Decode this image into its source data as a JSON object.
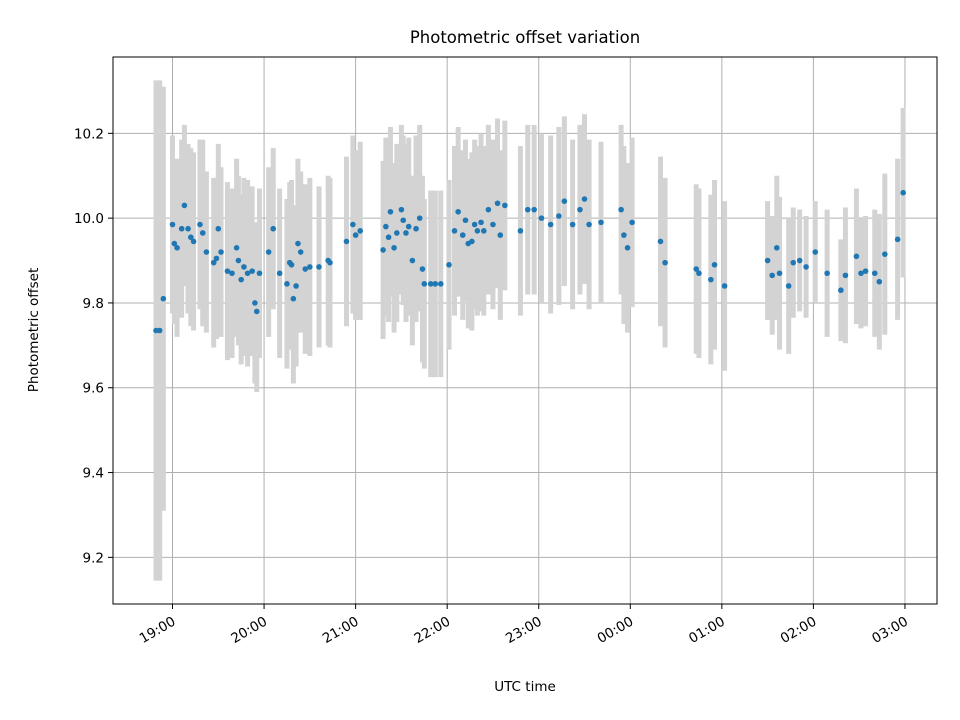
{
  "chart_data": {
    "type": "scatter",
    "title": "Photometric offset variation",
    "xlabel": "UTC time",
    "ylabel": "Photometric offset",
    "x_unit": "hours",
    "xlim": [
      18.35,
      27.35
    ],
    "ylim": [
      9.09,
      10.38
    ],
    "grid": true,
    "colors": {
      "points": "#1f77b4",
      "errorbars": "#d3d3d3",
      "grid": "#b0b0b0"
    },
    "xticks": [
      {
        "value": 19,
        "label": "19:00"
      },
      {
        "value": 20,
        "label": "20:00"
      },
      {
        "value": 21,
        "label": "21:00"
      },
      {
        "value": 22,
        "label": "22:00"
      },
      {
        "value": 23,
        "label": "23:00"
      },
      {
        "value": 24,
        "label": "00:00"
      },
      {
        "value": 25,
        "label": "01:00"
      },
      {
        "value": 26,
        "label": "02:00"
      },
      {
        "value": 27,
        "label": "03:00"
      }
    ],
    "yticks": [
      {
        "value": 9.2,
        "label": "9.2"
      },
      {
        "value": 9.4,
        "label": "9.4"
      },
      {
        "value": 9.6,
        "label": "9.6"
      },
      {
        "value": 9.8,
        "label": "9.8"
      },
      {
        "value": 10.0,
        "label": "10.0"
      },
      {
        "value": 10.2,
        "label": "10.2"
      }
    ],
    "series": [
      {
        "points": [
          {
            "x": 18.82,
            "y": 9.735,
            "err": 0.59
          },
          {
            "x": 18.86,
            "y": 9.735,
            "err": 0.59
          },
          {
            "x": 18.9,
            "y": 9.81,
            "err": 0.5
          },
          {
            "x": 19.0,
            "y": 9.985,
            "err": 0.21
          },
          {
            "x": 19.02,
            "y": 9.94,
            "err": 0.19
          },
          {
            "x": 19.05,
            "y": 9.93,
            "err": 0.21
          },
          {
            "x": 19.1,
            "y": 9.975,
            "err": 0.21
          },
          {
            "x": 19.13,
            "y": 10.03,
            "err": 0.19
          },
          {
            "x": 19.17,
            "y": 9.975,
            "err": 0.2
          },
          {
            "x": 19.2,
            "y": 9.955,
            "err": 0.21
          },
          {
            "x": 19.23,
            "y": 9.945,
            "err": 0.21
          },
          {
            "x": 19.3,
            "y": 9.985,
            "err": 0.2
          },
          {
            "x": 19.33,
            "y": 9.965,
            "err": 0.22
          },
          {
            "x": 19.37,
            "y": 9.92,
            "err": 0.19
          },
          {
            "x": 19.45,
            "y": 9.895,
            "err": 0.2
          },
          {
            "x": 19.48,
            "y": 9.905,
            "err": 0.19
          },
          {
            "x": 19.5,
            "y": 9.975,
            "err": 0.2
          },
          {
            "x": 19.53,
            "y": 9.92,
            "err": 0.2
          },
          {
            "x": 19.6,
            "y": 9.875,
            "err": 0.21
          },
          {
            "x": 19.65,
            "y": 9.87,
            "err": 0.2
          },
          {
            "x": 19.7,
            "y": 9.93,
            "err": 0.21
          },
          {
            "x": 19.72,
            "y": 9.9,
            "err": 0.2
          },
          {
            "x": 19.75,
            "y": 9.855,
            "err": 0.2
          },
          {
            "x": 19.78,
            "y": 9.885,
            "err": 0.21
          },
          {
            "x": 19.82,
            "y": 9.87,
            "err": 0.22
          },
          {
            "x": 19.87,
            "y": 9.875,
            "err": 0.2
          },
          {
            "x": 19.9,
            "y": 9.8,
            "err": 0.19
          },
          {
            "x": 19.92,
            "y": 9.78,
            "err": 0.19
          },
          {
            "x": 19.95,
            "y": 9.87,
            "err": 0.2
          },
          {
            "x": 20.05,
            "y": 9.92,
            "err": 0.2
          },
          {
            "x": 20.1,
            "y": 9.975,
            "err": 0.19
          },
          {
            "x": 20.17,
            "y": 9.87,
            "err": 0.2
          },
          {
            "x": 20.25,
            "y": 9.845,
            "err": 0.2
          },
          {
            "x": 20.28,
            "y": 9.895,
            "err": 0.19
          },
          {
            "x": 20.3,
            "y": 9.89,
            "err": 0.2
          },
          {
            "x": 20.32,
            "y": 9.81,
            "err": 0.2
          },
          {
            "x": 20.35,
            "y": 9.84,
            "err": 0.19
          },
          {
            "x": 20.37,
            "y": 9.94,
            "err": 0.2
          },
          {
            "x": 20.4,
            "y": 9.92,
            "err": 0.19
          },
          {
            "x": 20.45,
            "y": 9.88,
            "err": 0.2
          },
          {
            "x": 20.5,
            "y": 9.885,
            "err": 0.21
          },
          {
            "x": 20.6,
            "y": 9.885,
            "err": 0.19
          },
          {
            "x": 20.7,
            "y": 9.9,
            "err": 0.2
          },
          {
            "x": 20.72,
            "y": 9.895,
            "err": 0.2
          },
          {
            "x": 20.9,
            "y": 9.945,
            "err": 0.2
          },
          {
            "x": 20.97,
            "y": 9.985,
            "err": 0.21
          },
          {
            "x": 21.0,
            "y": 9.96,
            "err": 0.2
          },
          {
            "x": 21.05,
            "y": 9.97,
            "err": 0.21
          },
          {
            "x": 21.3,
            "y": 9.925,
            "err": 0.21
          },
          {
            "x": 21.33,
            "y": 9.98,
            "err": 0.21
          },
          {
            "x": 21.36,
            "y": 9.955,
            "err": 0.2
          },
          {
            "x": 21.38,
            "y": 10.015,
            "err": 0.2
          },
          {
            "x": 21.42,
            "y": 9.93,
            "err": 0.2
          },
          {
            "x": 21.45,
            "y": 9.965,
            "err": 0.21
          },
          {
            "x": 21.5,
            "y": 10.02,
            "err": 0.2
          },
          {
            "x": 21.52,
            "y": 9.995,
            "err": 0.2
          },
          {
            "x": 21.55,
            "y": 9.965,
            "err": 0.21
          },
          {
            "x": 21.58,
            "y": 9.98,
            "err": 0.21
          },
          {
            "x": 21.62,
            "y": 9.9,
            "err": 0.2
          },
          {
            "x": 21.66,
            "y": 9.975,
            "err": 0.22
          },
          {
            "x": 21.7,
            "y": 10.0,
            "err": 0.22
          },
          {
            "x": 21.73,
            "y": 9.88,
            "err": 0.22
          },
          {
            "x": 21.75,
            "y": 9.845,
            "err": 0.2
          },
          {
            "x": 21.82,
            "y": 9.845,
            "err": 0.22
          },
          {
            "x": 21.87,
            "y": 9.845,
            "err": 0.22
          },
          {
            "x": 21.93,
            "y": 9.845,
            "err": 0.22
          },
          {
            "x": 22.02,
            "y": 9.89,
            "err": 0.2
          },
          {
            "x": 22.08,
            "y": 9.97,
            "err": 0.2
          },
          {
            "x": 22.12,
            "y": 10.015,
            "err": 0.2
          },
          {
            "x": 22.17,
            "y": 9.96,
            "err": 0.2
          },
          {
            "x": 22.2,
            "y": 9.995,
            "err": 0.19
          },
          {
            "x": 22.23,
            "y": 9.94,
            "err": 0.2
          },
          {
            "x": 22.27,
            "y": 9.945,
            "err": 0.21
          },
          {
            "x": 22.3,
            "y": 9.985,
            "err": 0.2
          },
          {
            "x": 22.33,
            "y": 9.97,
            "err": 0.2
          },
          {
            "x": 22.37,
            "y": 9.99,
            "err": 0.21
          },
          {
            "x": 22.4,
            "y": 9.97,
            "err": 0.2
          },
          {
            "x": 22.45,
            "y": 10.02,
            "err": 0.2
          },
          {
            "x": 22.5,
            "y": 9.985,
            "err": 0.2
          },
          {
            "x": 22.55,
            "y": 10.035,
            "err": 0.2
          },
          {
            "x": 22.58,
            "y": 9.96,
            "err": 0.2
          },
          {
            "x": 22.63,
            "y": 10.03,
            "err": 0.2
          },
          {
            "x": 22.8,
            "y": 9.97,
            "err": 0.2
          },
          {
            "x": 22.88,
            "y": 10.02,
            "err": 0.2
          },
          {
            "x": 22.95,
            "y": 10.02,
            "err": 0.2
          },
          {
            "x": 23.03,
            "y": 10.0,
            "err": 0.2
          },
          {
            "x": 23.13,
            "y": 9.985,
            "err": 0.21
          },
          {
            "x": 23.22,
            "y": 10.005,
            "err": 0.21
          },
          {
            "x": 23.28,
            "y": 10.04,
            "err": 0.2
          },
          {
            "x": 23.37,
            "y": 9.985,
            "err": 0.2
          },
          {
            "x": 23.45,
            "y": 10.02,
            "err": 0.2
          },
          {
            "x": 23.5,
            "y": 10.045,
            "err": 0.2
          },
          {
            "x": 23.55,
            "y": 9.985,
            "err": 0.2
          },
          {
            "x": 23.68,
            "y": 9.99,
            "err": 0.19
          },
          {
            "x": 23.9,
            "y": 10.02,
            "err": 0.2
          },
          {
            "x": 23.93,
            "y": 9.96,
            "err": 0.21
          },
          {
            "x": 23.97,
            "y": 9.93,
            "err": 0.2
          },
          {
            "x": 24.02,
            "y": 9.99,
            "err": 0.2
          },
          {
            "x": 24.33,
            "y": 9.945,
            "err": 0.2
          },
          {
            "x": 24.38,
            "y": 9.895,
            "err": 0.2
          },
          {
            "x": 24.72,
            "y": 9.88,
            "err": 0.2
          },
          {
            "x": 24.75,
            "y": 9.87,
            "err": 0.2
          },
          {
            "x": 24.88,
            "y": 9.855,
            "err": 0.2
          },
          {
            "x": 24.92,
            "y": 9.89,
            "err": 0.2
          },
          {
            "x": 25.03,
            "y": 9.84,
            "err": 0.2
          },
          {
            "x": 25.5,
            "y": 9.9,
            "err": 0.14
          },
          {
            "x": 25.55,
            "y": 9.865,
            "err": 0.14
          },
          {
            "x": 25.6,
            "y": 9.93,
            "err": 0.17
          },
          {
            "x": 25.63,
            "y": 9.87,
            "err": 0.18
          },
          {
            "x": 25.73,
            "y": 9.84,
            "err": 0.16
          },
          {
            "x": 25.78,
            "y": 9.895,
            "err": 0.13
          },
          {
            "x": 25.85,
            "y": 9.9,
            "err": 0.12
          },
          {
            "x": 25.92,
            "y": 9.885,
            "err": 0.12
          },
          {
            "x": 26.02,
            "y": 9.92,
            "err": 0.12
          },
          {
            "x": 26.15,
            "y": 9.87,
            "err": 0.15
          },
          {
            "x": 26.3,
            "y": 9.83,
            "err": 0.12
          },
          {
            "x": 26.35,
            "y": 9.865,
            "err": 0.16
          },
          {
            "x": 26.47,
            "y": 9.91,
            "err": 0.16
          },
          {
            "x": 26.52,
            "y": 9.87,
            "err": 0.13
          },
          {
            "x": 26.57,
            "y": 9.875,
            "err": 0.13
          },
          {
            "x": 26.67,
            "y": 9.87,
            "err": 0.15
          },
          {
            "x": 26.72,
            "y": 9.85,
            "err": 0.16
          },
          {
            "x": 26.78,
            "y": 9.915,
            "err": 0.19
          },
          {
            "x": 26.92,
            "y": 9.95,
            "err": 0.19
          },
          {
            "x": 26.98,
            "y": 10.06,
            "err": 0.2
          }
        ]
      }
    ]
  }
}
